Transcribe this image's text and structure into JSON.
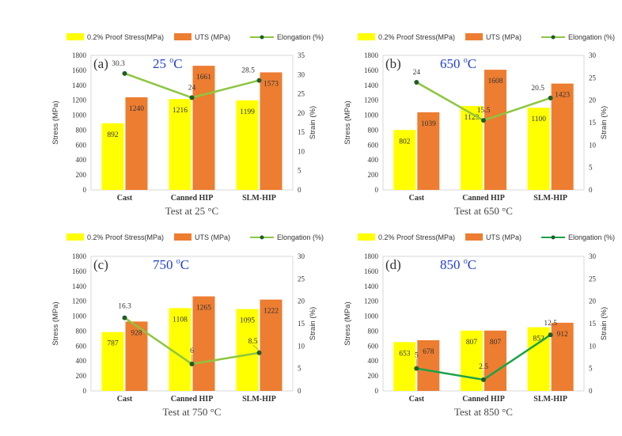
{
  "series_colors": {
    "proof": "#FFFF00",
    "uts": "#ED7D31",
    "line_default": "#8DC63F",
    "line_d": "#1AA34A",
    "marker": "#1F5E2A"
  },
  "chart_data": [
    {
      "type": "bar",
      "panel": "(a)",
      "temp_label": "25 ",
      "temp_unit": "C",
      "deg_sup": "o",
      "categories": [
        "Cast",
        "Canned HIP",
        "SLM-HIP"
      ],
      "series": [
        {
          "name": "0.2% Proof Stress(MPa)",
          "values": [
            892,
            1216,
            1199
          ]
        },
        {
          "name": "UTS (MPa)",
          "values": [
            1240,
            1661,
            1573
          ]
        },
        {
          "name": "Elongation (%)",
          "values": [
            30.3,
            24,
            28.5
          ],
          "axis": "secondary"
        }
      ],
      "ylabel": "Stress (MPa)",
      "y2label": "Strain (%)",
      "ylim": [
        0,
        1800
      ],
      "y2lim": [
        0,
        35
      ],
      "yticks": [
        0,
        200,
        400,
        600,
        800,
        1000,
        1200,
        1400,
        1600,
        1800
      ],
      "y2ticks": [
        0,
        5,
        10,
        15,
        20,
        25,
        30,
        35
      ],
      "xlabel": "Test at 25 °C",
      "legend": "top"
    },
    {
      "type": "bar",
      "panel": "(b)",
      "temp_label": "650 ",
      "temp_unit": "C",
      "deg_sup": "o",
      "categories": [
        "Cast",
        "Canned HIP",
        "SLM-HIP"
      ],
      "series": [
        {
          "name": "0.2% Proof Stress(MPa)",
          "values": [
            802,
            1123,
            1100
          ]
        },
        {
          "name": "UTS (MPa)",
          "values": [
            1039,
            1608,
            1423
          ]
        },
        {
          "name": "Elongation (%)",
          "values": [
            24,
            15.5,
            20.5
          ],
          "axis": "secondary"
        }
      ],
      "ylabel": "Stress (MPa)",
      "y2label": "Strain (%)",
      "ylim": [
        0,
        1800
      ],
      "y2lim": [
        0,
        30
      ],
      "yticks": [
        0,
        200,
        400,
        600,
        800,
        1000,
        1200,
        1400,
        1600,
        1800
      ],
      "y2ticks": [
        0,
        5,
        10,
        15,
        20,
        25,
        30
      ],
      "xlabel": "Test at 650 °C",
      "legend": "top"
    },
    {
      "type": "bar",
      "panel": "(c)",
      "temp_label": "750 ",
      "temp_unit": "C",
      "deg_sup": "o",
      "categories": [
        "Cast",
        "Canned HIP",
        "SLM-HIP"
      ],
      "series": [
        {
          "name": "0.2% Proof Stress(MPa)",
          "values": [
            787,
            1108,
            1095
          ]
        },
        {
          "name": "UTS (MPa)",
          "values": [
            928,
            1265,
            1222
          ]
        },
        {
          "name": "Elongation (%)",
          "values": [
            16.3,
            6,
            8.5
          ],
          "axis": "secondary"
        }
      ],
      "ylabel": "Stress (MPa)",
      "y2label": "Strain (%)",
      "ylim": [
        0,
        1800
      ],
      "y2lim": [
        0,
        30
      ],
      "yticks": [
        0,
        200,
        400,
        600,
        800,
        1000,
        1200,
        1400,
        1600,
        1800
      ],
      "y2ticks": [
        0,
        5,
        10,
        15,
        20,
        25,
        30
      ],
      "xlabel": "Test at 750 °C",
      "legend": "top"
    },
    {
      "type": "bar",
      "panel": "(d)",
      "temp_label": "850 ",
      "temp_unit": "C",
      "deg_sup": "o",
      "categories": [
        "Cast",
        "Canned HIP",
        "SLM-HIP"
      ],
      "series": [
        {
          "name": "0.2% Proof Stress(MPa)",
          "values": [
            653,
            807,
            852
          ]
        },
        {
          "name": "UTS (MPa)",
          "values": [
            678,
            807,
            912
          ]
        },
        {
          "name": "Elongation (%)",
          "values": [
            5,
            2.5,
            12.5
          ],
          "axis": "secondary"
        }
      ],
      "ylabel": "Stress (MPa)",
      "y2label": "Strain (%)",
      "ylim": [
        0,
        1800
      ],
      "y2lim": [
        0,
        30
      ],
      "yticks": [
        0,
        200,
        400,
        600,
        800,
        1000,
        1200,
        1400,
        1600,
        1800
      ],
      "y2ticks": [
        0,
        5,
        10,
        15,
        20,
        25,
        30
      ],
      "xlabel": "Test at 850 °C",
      "legend": "top"
    }
  ]
}
